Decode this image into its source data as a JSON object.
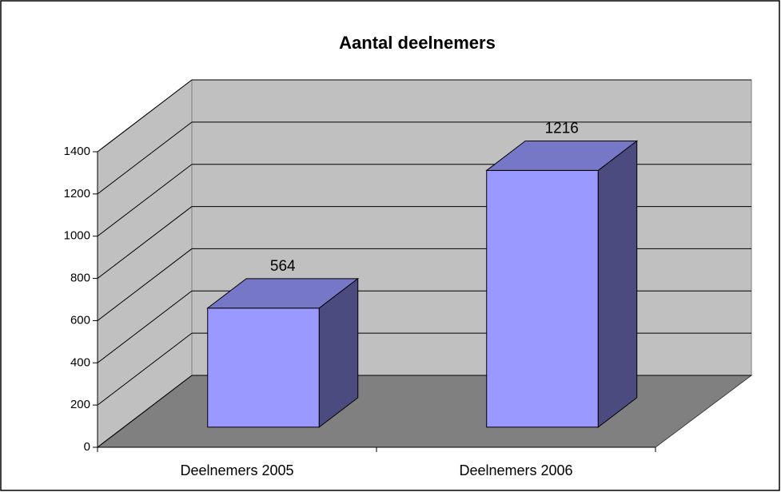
{
  "chart_data": {
    "type": "bar",
    "title": "Aantal deelnemers",
    "categories": [
      "Deelnemers 2005",
      "Deelnemers 2006"
    ],
    "values": [
      564,
      1216
    ],
    "color": "#9999ff",
    "ylim": [
      0,
      1400
    ],
    "yticks": [
      0,
      200,
      400,
      600,
      800,
      1000,
      1200,
      1400
    ],
    "grid": true
  }
}
